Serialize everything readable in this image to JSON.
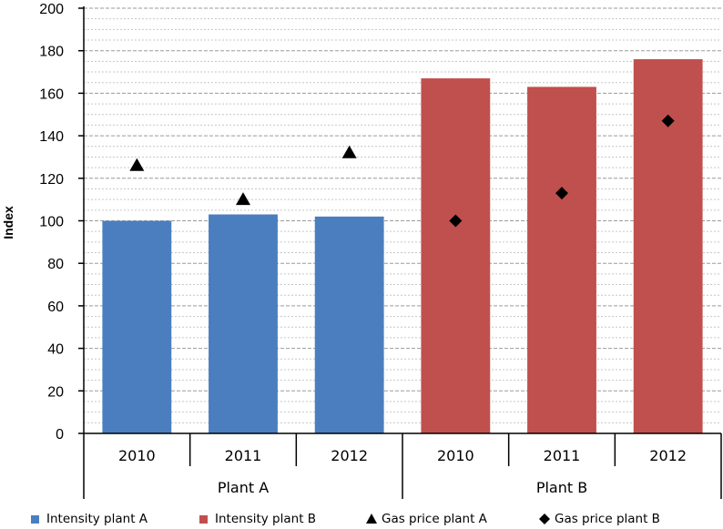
{
  "chart_data": {
    "type": "bar",
    "ylabel": "Index",
    "ylim": [
      0,
      200
    ],
    "yticks": [
      "0",
      "20",
      "40",
      "60",
      "80",
      "100",
      "120",
      "140",
      "160",
      "180",
      "200"
    ],
    "grid": true,
    "legend_position": "bottom",
    "groups": [
      {
        "name": "Plant A",
        "categories": [
          "2010",
          "2011",
          "2012"
        ]
      },
      {
        "name": "Plant B",
        "categories": [
          "2010",
          "2011",
          "2012"
        ]
      }
    ],
    "series": [
      {
        "name": "Intensity plant A",
        "kind": "bar",
        "color": "#4a7ebf",
        "group": 0,
        "values": [
          100,
          103,
          102
        ]
      },
      {
        "name": "Intensity plant B",
        "kind": "bar",
        "color": "#c0504d",
        "group": 1,
        "values": [
          167,
          163,
          176
        ]
      },
      {
        "name": "Gas price plant A",
        "kind": "marker",
        "marker": "triangle",
        "color": "#000000",
        "group": 0,
        "values": [
          126,
          110,
          132
        ]
      },
      {
        "name": "Gas price plant B",
        "kind": "marker",
        "marker": "diamond",
        "color": "#000000",
        "group": 1,
        "values": [
          100,
          113,
          147
        ]
      }
    ]
  }
}
